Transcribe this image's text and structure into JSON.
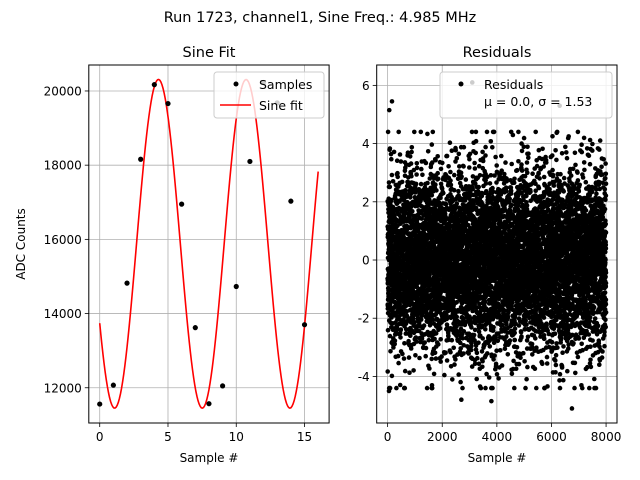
{
  "suptitle": "Run 1723, channel1, Sine Freq.: 4.985 MHz",
  "chart_data": [
    {
      "type": "scatter",
      "title": "Sine Fit",
      "xlabel": "Sample #",
      "ylabel": "ADC Counts",
      "xlim": [
        -0.8,
        16.8
      ],
      "ylim": [
        11050,
        20700
      ],
      "xticks": [
        0,
        5,
        10,
        15
      ],
      "yticks": [
        12000,
        14000,
        16000,
        18000,
        20000
      ],
      "grid": true,
      "legend_position": "top-right",
      "series": [
        {
          "name": "Samples",
          "style": "points",
          "color": "#000000",
          "x": [
            0,
            1,
            2,
            3,
            4,
            5,
            6,
            7,
            8,
            9,
            10,
            11,
            12,
            13,
            14,
            15
          ],
          "y": [
            11560,
            12070,
            14820,
            18160,
            20170,
            19660,
            16950,
            13620,
            11570,
            12050,
            14730,
            18100,
            20230,
            19680,
            17030,
            13700
          ]
        },
        {
          "name": "Sine fit",
          "style": "line",
          "color": "#ff0000",
          "model": {
            "amplitude": 4430,
            "offset": 15880,
            "period": 6.42,
            "phase_sample": 4.3,
            "x_range": [
              0,
              16
            ]
          }
        }
      ]
    },
    {
      "type": "scatter",
      "title": "Residuals",
      "xlabel": "Sample #",
      "ylabel": "",
      "xlim": [
        -400,
        8400
      ],
      "ylim": [
        -5.6,
        6.7
      ],
      "xticks": [
        0,
        2000,
        4000,
        6000,
        8000
      ],
      "yticks": [
        -4,
        -2,
        0,
        2,
        4,
        6
      ],
      "grid": true,
      "legend_position": "top-right",
      "legend_lines": [
        "Residuals",
        "μ = 0.0, σ = 1.53"
      ],
      "series": [
        {
          "name": "Residuals",
          "style": "points",
          "color": "#000000",
          "n_points": 8000,
          "x_range": [
            0,
            8000
          ],
          "mean": 0.0,
          "std": 1.53,
          "outliers": [
            {
              "x": 60,
              "y": 5.15
            },
            {
              "x": 160,
              "y": 5.45
            },
            {
              "x": 3100,
              "y": 6.1
            },
            {
              "x": 6300,
              "y": 5.3
            },
            {
              "x": 50,
              "y": -4.5
            },
            {
              "x": 2700,
              "y": -4.8
            },
            {
              "x": 3800,
              "y": -4.85
            },
            {
              "x": 6750,
              "y": -5.1
            }
          ]
        }
      ]
    }
  ]
}
